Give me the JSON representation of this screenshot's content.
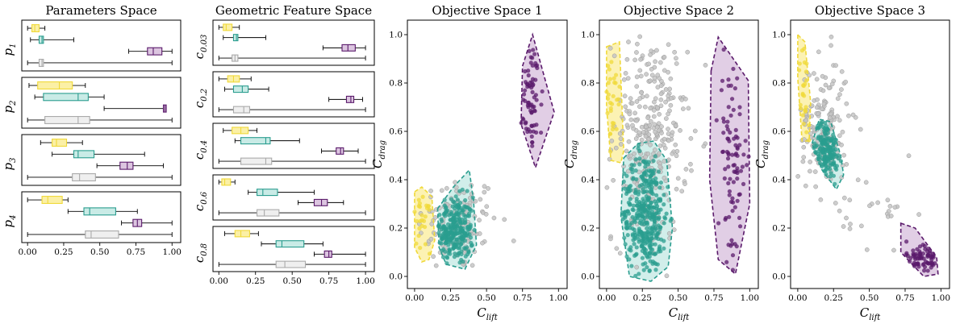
{
  "colors": {
    "yellow": "#f0d93a",
    "yellow_fill": "#fbf0a6",
    "teal": "#2a9d8f",
    "teal_fill": "#c9ebe6",
    "purple": "#5a1a6b",
    "purple_fill": "#dcc5e0",
    "gray": "#c4c4c4",
    "gray_fill": "#efefef"
  },
  "chart_data": [
    {
      "type": "box",
      "title": "Parameters Space",
      "xticks": [
        "0.00",
        "0.25",
        "0.50",
        "0.75",
        "1.00"
      ],
      "xlim": [
        -0.04,
        1.06
      ],
      "panels": [
        {
          "label_base": "p",
          "label_sub": "1",
          "boxes": [
            {
              "group": "yellow",
              "whislo": 0.0,
              "q1": 0.03,
              "med": 0.05,
              "q3": 0.08,
              "whishi": 0.12
            },
            {
              "group": "teal",
              "whislo": 0.02,
              "q1": 0.08,
              "med": 0.1,
              "q3": 0.11,
              "whishi": 0.32
            },
            {
              "group": "purple",
              "whislo": 0.7,
              "q1": 0.83,
              "med": 0.87,
              "q3": 0.93,
              "whishi": 1.0
            },
            {
              "group": "gray",
              "whislo": 0.0,
              "q1": 0.08,
              "med": 0.1,
              "q3": 0.11,
              "whishi": 1.0
            }
          ]
        },
        {
          "label_base": "p",
          "label_sub": "2",
          "boxes": [
            {
              "group": "yellow",
              "whislo": 0.01,
              "q1": 0.07,
              "med": 0.22,
              "q3": 0.31,
              "whishi": 0.4
            },
            {
              "group": "teal",
              "whislo": 0.05,
              "q1": 0.11,
              "med": 0.35,
              "q3": 0.42,
              "whishi": 0.53
            },
            {
              "group": "purple",
              "whislo": 0.53,
              "q1": 0.94,
              "med": 0.95,
              "q3": 0.96,
              "whishi": 0.96
            },
            {
              "group": "gray",
              "whislo": 0.0,
              "q1": 0.12,
              "med": 0.35,
              "q3": 0.43,
              "whishi": 1.0
            }
          ]
        },
        {
          "label_base": "p",
          "label_sub": "3",
          "boxes": [
            {
              "group": "yellow",
              "whislo": 0.09,
              "q1": 0.17,
              "med": 0.2,
              "q3": 0.27,
              "whishi": 0.38
            },
            {
              "group": "teal",
              "whislo": 0.17,
              "q1": 0.32,
              "med": 0.35,
              "q3": 0.46,
              "whishi": 0.81
            },
            {
              "group": "purple",
              "whislo": 0.48,
              "q1": 0.64,
              "med": 0.69,
              "q3": 0.73,
              "whishi": 0.94
            },
            {
              "group": "gray",
              "whislo": 0.0,
              "q1": 0.31,
              "med": 0.36,
              "q3": 0.47,
              "whishi": 1.0
            }
          ]
        },
        {
          "label_base": "p",
          "label_sub": "4",
          "boxes": [
            {
              "group": "yellow",
              "whislo": 0.0,
              "q1": 0.1,
              "med": 0.14,
              "q3": 0.24,
              "whishi": 0.28
            },
            {
              "group": "teal",
              "whislo": 0.28,
              "q1": 0.39,
              "med": 0.43,
              "q3": 0.61,
              "whishi": 0.76
            },
            {
              "group": "purple",
              "whislo": 0.65,
              "q1": 0.73,
              "med": 0.76,
              "q3": 0.79,
              "whishi": 1.0
            },
            {
              "group": "gray",
              "whislo": 0.0,
              "q1": 0.4,
              "med": 0.44,
              "q3": 0.63,
              "whishi": 1.0
            }
          ]
        }
      ]
    },
    {
      "type": "box",
      "title": "Geometric Feature Space",
      "xticks": [
        "0.00",
        "0.25",
        "0.50",
        "0.75",
        "1.00"
      ],
      "xlim": [
        -0.04,
        1.06
      ],
      "panels": [
        {
          "label_base": "c",
          "label_sub": "0.03",
          "boxes": [
            {
              "group": "yellow",
              "whislo": 0.0,
              "q1": 0.03,
              "med": 0.05,
              "q3": 0.09,
              "whishi": 0.14
            },
            {
              "group": "teal",
              "whislo": 0.03,
              "q1": 0.1,
              "med": 0.12,
              "q3": 0.13,
              "whishi": 0.32
            },
            {
              "group": "purple",
              "whislo": 0.71,
              "q1": 0.84,
              "med": 0.88,
              "q3": 0.93,
              "whishi": 1.0
            },
            {
              "group": "gray",
              "whislo": 0.0,
              "q1": 0.09,
              "med": 0.11,
              "q3": 0.13,
              "whishi": 1.0
            }
          ]
        },
        {
          "label_base": "c",
          "label_sub": "0.2",
          "boxes": [
            {
              "group": "yellow",
              "whislo": 0.0,
              "q1": 0.06,
              "med": 0.1,
              "q3": 0.14,
              "whishi": 0.22
            },
            {
              "group": "teal",
              "whislo": 0.04,
              "q1": 0.1,
              "med": 0.16,
              "q3": 0.2,
              "whishi": 0.34
            },
            {
              "group": "purple",
              "whislo": 0.75,
              "q1": 0.87,
              "med": 0.9,
              "q3": 0.92,
              "whishi": 0.98
            },
            {
              "group": "gray",
              "whislo": 0.0,
              "q1": 0.1,
              "med": 0.17,
              "q3": 0.21,
              "whishi": 1.0
            }
          ]
        },
        {
          "label_base": "c",
          "label_sub": "0.4",
          "boxes": [
            {
              "group": "yellow",
              "whislo": 0.03,
              "q1": 0.09,
              "med": 0.15,
              "q3": 0.2,
              "whishi": 0.26
            },
            {
              "group": "teal",
              "whislo": 0.11,
              "q1": 0.15,
              "med": 0.32,
              "q3": 0.35,
              "whishi": 0.55
            },
            {
              "group": "purple",
              "whislo": 0.7,
              "q1": 0.8,
              "med": 0.83,
              "q3": 0.85,
              "whishi": 0.95
            },
            {
              "group": "gray",
              "whislo": 0.0,
              "q1": 0.15,
              "med": 0.32,
              "q3": 0.36,
              "whishi": 1.0
            }
          ]
        },
        {
          "label_base": "c",
          "label_sub": "0.6",
          "boxes": [
            {
              "group": "yellow",
              "whislo": 0.0,
              "q1": 0.02,
              "med": 0.04,
              "q3": 0.08,
              "whishi": 0.11
            },
            {
              "group": "teal",
              "whislo": 0.2,
              "q1": 0.26,
              "med": 0.3,
              "q3": 0.4,
              "whishi": 0.65
            },
            {
              "group": "purple",
              "whislo": 0.54,
              "q1": 0.65,
              "med": 0.7,
              "q3": 0.74,
              "whishi": 0.85
            },
            {
              "group": "gray",
              "whislo": 0.0,
              "q1": 0.26,
              "med": 0.31,
              "q3": 0.41,
              "whishi": 1.0
            }
          ]
        },
        {
          "label_base": "c",
          "label_sub": "0.8",
          "boxes": [
            {
              "group": "yellow",
              "whislo": 0.04,
              "q1": 0.11,
              "med": 0.15,
              "q3": 0.21,
              "whishi": 0.27
            },
            {
              "group": "teal",
              "whislo": 0.29,
              "q1": 0.39,
              "med": 0.43,
              "q3": 0.58,
              "whishi": 0.71
            },
            {
              "group": "purple",
              "whislo": 0.65,
              "q1": 0.72,
              "med": 0.75,
              "q3": 0.77,
              "whishi": 1.0
            },
            {
              "group": "gray",
              "whislo": 0.0,
              "q1": 0.39,
              "med": 0.45,
              "q3": 0.59,
              "whishi": 1.0
            }
          ]
        }
      ]
    },
    {
      "type": "scatter",
      "title": "Objective Space 1",
      "xlabel_base": "C",
      "xlabel_sub": "lift",
      "ylabel_base": "C",
      "ylabel_sub": "drag",
      "xlim": [
        -0.05,
        1.06
      ],
      "ylim": [
        -0.05,
        1.06
      ],
      "xticks": [
        "0.00",
        "0.25",
        "0.50",
        "0.75",
        "1.00"
      ],
      "yticks": [
        "0.0",
        "0.2",
        "0.4",
        "0.6",
        "0.8",
        "1.0"
      ],
      "clusters": [
        {
          "group": "gray",
          "cx": 0.3,
          "cy": 0.22,
          "sx": 0.14,
          "sy": 0.1,
          "n": 120
        },
        {
          "group": "teal",
          "cx": 0.27,
          "cy": 0.19,
          "sx": 0.07,
          "sy": 0.07,
          "n": 260
        },
        {
          "group": "yellow",
          "cx": 0.05,
          "cy": 0.22,
          "sx": 0.03,
          "sy": 0.06,
          "n": 25
        },
        {
          "group": "purple",
          "cx": 0.81,
          "cy": 0.74,
          "sx": 0.04,
          "sy": 0.13,
          "n": 70
        }
      ],
      "hulls": [
        {
          "group": "yellow",
          "points": [
            [
              0.0,
              0.35
            ],
            [
              0.05,
              0.37
            ],
            [
              0.12,
              0.33
            ],
            [
              0.14,
              0.15
            ],
            [
              0.1,
              0.07
            ],
            [
              0.05,
              0.06
            ],
            [
              0.0,
              0.12
            ]
          ]
        },
        {
          "group": "teal",
          "points": [
            [
              0.16,
              0.28
            ],
            [
              0.27,
              0.37
            ],
            [
              0.38,
              0.44
            ],
            [
              0.41,
              0.31
            ],
            [
              0.43,
              0.13
            ],
            [
              0.35,
              0.03
            ],
            [
              0.22,
              0.05
            ],
            [
              0.17,
              0.12
            ]
          ]
        },
        {
          "group": "purple",
          "points": [
            [
              0.74,
              0.63
            ],
            [
              0.75,
              0.87
            ],
            [
              0.82,
              1.0
            ],
            [
              0.97,
              0.68
            ],
            [
              0.84,
              0.45
            ]
          ]
        }
      ]
    },
    {
      "type": "scatter",
      "title": "Objective Space 2",
      "xlabel_base": "C",
      "xlabel_sub": "lift",
      "ylabel_base": "C",
      "ylabel_sub": "drag",
      "xlim": [
        -0.05,
        1.06
      ],
      "ylim": [
        -0.05,
        1.06
      ],
      "xticks": [
        "0.00",
        "0.25",
        "0.50",
        "0.75",
        "1.00"
      ],
      "yticks": [
        "0.0",
        "0.2",
        "0.4",
        "0.6",
        "0.8",
        "1.0"
      ],
      "clusters": [
        {
          "group": "gray",
          "cx": 0.3,
          "cy": 0.58,
          "sx": 0.13,
          "sy": 0.22,
          "n": 300
        },
        {
          "group": "teal",
          "cx": 0.27,
          "cy": 0.26,
          "sx": 0.08,
          "sy": 0.13,
          "n": 380
        },
        {
          "group": "yellow",
          "cx": 0.04,
          "cy": 0.73,
          "sx": 0.03,
          "sy": 0.12,
          "n": 30
        },
        {
          "group": "purple",
          "cx": 0.88,
          "cy": 0.5,
          "sx": 0.05,
          "sy": 0.24,
          "n": 90
        }
      ],
      "hulls": [
        {
          "group": "yellow",
          "points": [
            [
              0.0,
              0.95
            ],
            [
              0.09,
              0.97
            ],
            [
              0.12,
              0.52
            ],
            [
              0.1,
              0.47
            ],
            [
              0.03,
              0.48
            ],
            [
              0.0,
              0.7
            ]
          ]
        },
        {
          "group": "teal",
          "points": [
            [
              0.12,
              0.49
            ],
            [
              0.22,
              0.55
            ],
            [
              0.33,
              0.56
            ],
            [
              0.42,
              0.48
            ],
            [
              0.46,
              0.2
            ],
            [
              0.43,
              0.04
            ],
            [
              0.31,
              -0.02
            ],
            [
              0.16,
              0.0
            ],
            [
              0.1,
              0.25
            ]
          ]
        },
        {
          "group": "purple",
          "points": [
            [
              0.73,
              0.85
            ],
            [
              0.78,
              0.99
            ],
            [
              0.99,
              0.81
            ],
            [
              1.0,
              0.3
            ],
            [
              0.9,
              0.01
            ],
            [
              0.78,
              0.07
            ],
            [
              0.72,
              0.4
            ]
          ]
        }
      ]
    },
    {
      "type": "scatter",
      "title": "Objective Space 3",
      "xlabel_base": "C",
      "xlabel_sub": "lift",
      "ylabel_base": "C",
      "ylabel_sub": "drag",
      "xlim": [
        -0.05,
        1.06
      ],
      "ylim": [
        -0.05,
        1.06
      ],
      "xticks": [
        "0.00",
        "0.25",
        "0.50",
        "0.75",
        "1.00"
      ],
      "yticks": [
        "0.0",
        "0.2",
        "0.4",
        "0.6",
        "0.8",
        "1.0"
      ],
      "clusters": [
        {
          "group": "gray",
          "cx": 0.18,
          "cy": 0.62,
          "sx": 0.09,
          "sy": 0.14,
          "n": 150
        },
        {
          "group": "gray",
          "cx": 0.55,
          "cy": 0.25,
          "sx": 0.15,
          "sy": 0.1,
          "n": 25
        },
        {
          "group": "teal",
          "cx": 0.2,
          "cy": 0.53,
          "sx": 0.04,
          "sy": 0.06,
          "n": 170
        },
        {
          "group": "yellow",
          "cx": 0.05,
          "cy": 0.75,
          "sx": 0.02,
          "sy": 0.11,
          "n": 25
        },
        {
          "group": "purple",
          "cx": 0.88,
          "cy": 0.07,
          "sx": 0.06,
          "sy": 0.04,
          "n": 70
        }
      ],
      "hulls": [
        {
          "group": "yellow",
          "points": [
            [
              0.0,
              1.0
            ],
            [
              0.05,
              0.97
            ],
            [
              0.09,
              0.72
            ],
            [
              0.08,
              0.56
            ],
            [
              0.03,
              0.56
            ],
            [
              0.0,
              0.82
            ]
          ]
        },
        {
          "group": "teal",
          "points": [
            [
              0.1,
              0.55
            ],
            [
              0.15,
              0.65
            ],
            [
              0.23,
              0.64
            ],
            [
              0.3,
              0.5
            ],
            [
              0.32,
              0.42
            ],
            [
              0.27,
              0.36
            ],
            [
              0.17,
              0.44
            ]
          ]
        },
        {
          "group": "purple",
          "points": [
            [
              0.72,
              0.22
            ],
            [
              0.82,
              0.2
            ],
            [
              0.97,
              0.08
            ],
            [
              0.98,
              0.01
            ],
            [
              0.88,
              0.0
            ],
            [
              0.72,
              0.1
            ]
          ]
        }
      ]
    }
  ]
}
